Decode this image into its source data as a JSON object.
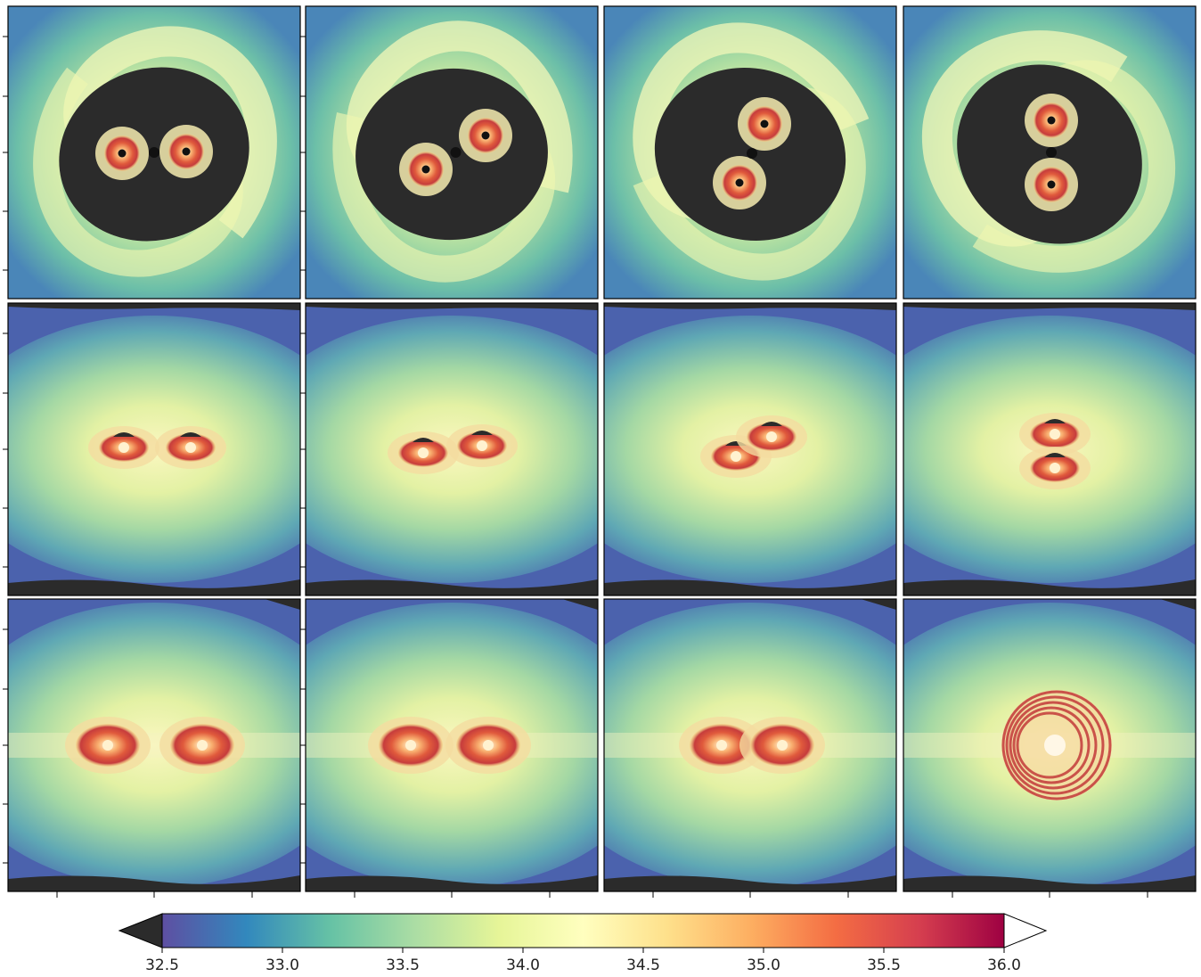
{
  "figure": {
    "rows": 3,
    "cols": 4,
    "row_views": [
      "face-on",
      "edge-on tilted",
      "edge-on"
    ],
    "panel_snapshots": [
      "snapshot-1",
      "snapshot-2",
      "snapshot-3",
      "snapshot-4"
    ],
    "background_color": "#2b2b2b"
  },
  "colorbar": {
    "colormap": "Spectral_r",
    "extend": "both",
    "min": 32.5,
    "max": 36.0,
    "tick_labels": [
      "32.5",
      "33.0",
      "33.5",
      "34.0",
      "34.5",
      "35.0",
      "35.5",
      "36.0"
    ],
    "colors": [
      "#5e4fa2",
      "#3288bd",
      "#66c2a5",
      "#abdda4",
      "#e6f598",
      "#ffffbf",
      "#fee08b",
      "#fdae61",
      "#f46d43",
      "#d53e4f",
      "#9e0142"
    ],
    "under_color": "#2b2b2b",
    "over_color": "#ffffff"
  }
}
